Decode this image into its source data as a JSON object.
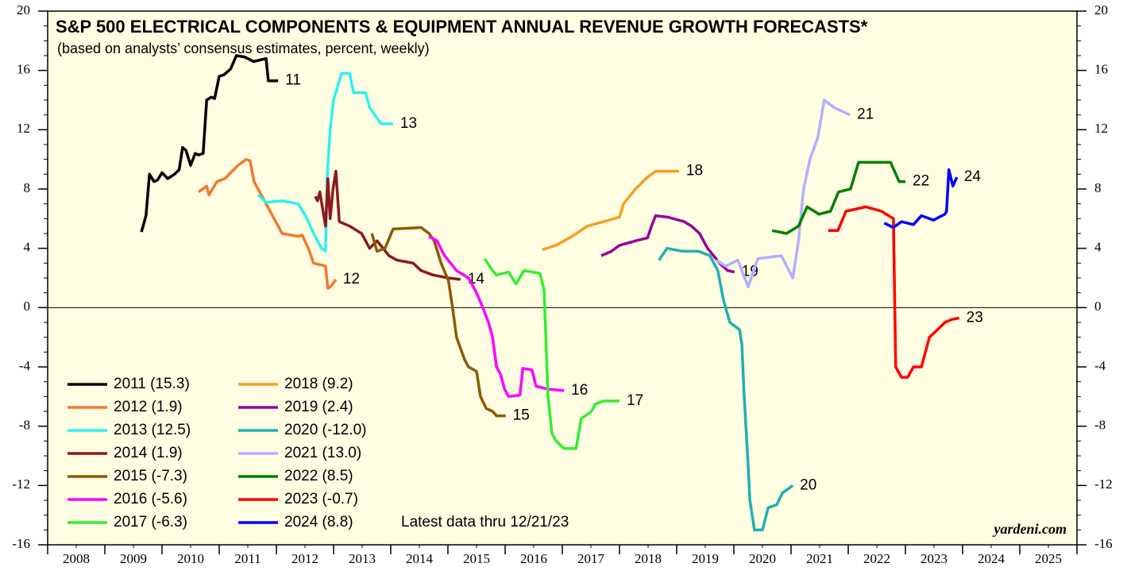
{
  "chart_data": {
    "type": "line",
    "title": "S&P 500 ELECTRICAL COMPONENTS & EQUIPMENT ANNUAL REVENUE GROWTH FORECASTS*",
    "subtitle": "(based on analysts’ consensus estimates, percent, weekly)",
    "annotation": "Latest data thru 12/21/23",
    "source": "yardeni.com",
    "xlim": [
      2008,
      2026
    ],
    "xticks": [
      {
        "value": 2008.5,
        "label": "2008"
      },
      {
        "value": 2009.5,
        "label": "2009"
      },
      {
        "value": 2010.5,
        "label": "2010"
      },
      {
        "value": 2011.5,
        "label": "2011"
      },
      {
        "value": 2012.5,
        "label": "2012"
      },
      {
        "value": 2013.5,
        "label": "2013"
      },
      {
        "value": 2014.5,
        "label": "2014"
      },
      {
        "value": 2015.5,
        "label": "2015"
      },
      {
        "value": 2016.5,
        "label": "2016"
      },
      {
        "value": 2017.5,
        "label": "2017"
      },
      {
        "value": 2018.5,
        "label": "2018"
      },
      {
        "value": 2019.5,
        "label": "2019"
      },
      {
        "value": 2020.5,
        "label": "2020"
      },
      {
        "value": 2021.5,
        "label": "2021"
      },
      {
        "value": 2022.5,
        "label": "2022"
      },
      {
        "value": 2023.5,
        "label": "2023"
      },
      {
        "value": 2024.5,
        "label": "2024"
      },
      {
        "value": 2025.5,
        "label": "2025"
      }
    ],
    "ylim": [
      -16,
      20
    ],
    "yticks": [
      -16,
      -12,
      -8,
      -4,
      0,
      4,
      8,
      12,
      16,
      20
    ],
    "series": [
      {
        "name": "2011 (15.3)",
        "label": "11",
        "color": "#000000",
        "x": [
          2009.64,
          2009.72,
          2009.78,
          2009.86,
          2009.92,
          2010.0,
          2010.1,
          2010.22,
          2010.3,
          2010.36,
          2010.42,
          2010.5,
          2010.58,
          2010.64,
          2010.72,
          2010.78,
          2010.86,
          2010.92,
          2011.0,
          2011.08,
          2011.2,
          2011.3,
          2011.45,
          2011.6,
          2011.82,
          2011.86,
          2011.9,
          2012.03
        ],
        "values": [
          5.1,
          6.2,
          9.0,
          8.5,
          8.6,
          9.1,
          8.7,
          9.0,
          9.3,
          10.8,
          10.6,
          9.6,
          10.4,
          10.3,
          10.4,
          14.0,
          14.2,
          14.1,
          15.6,
          15.7,
          16.1,
          17.0,
          16.9,
          16.6,
          16.8,
          15.3,
          15.3,
          15.3
        ]
      },
      {
        "name": "2012 (1.9)",
        "label": "12",
        "color": "#f07a30",
        "x": [
          2010.64,
          2010.78,
          2010.82,
          2010.96,
          2011.1,
          2011.33,
          2011.47,
          2011.54,
          2011.61,
          2011.75,
          2011.96,
          2012.1,
          2012.38,
          2012.45,
          2012.56,
          2012.65,
          2012.86,
          2012.9,
          2012.97,
          2013.04
        ],
        "values": [
          7.8,
          8.2,
          7.6,
          8.5,
          8.7,
          9.6,
          10.0,
          9.9,
          8.5,
          7.5,
          6.0,
          5.0,
          4.8,
          4.9,
          4.0,
          3.0,
          2.8,
          1.3,
          1.5,
          1.9
        ]
      },
      {
        "name": "2013 (12.5)",
        "label": "13",
        "color": "#30f0f0",
        "x": [
          2011.68,
          2011.82,
          2012.1,
          2012.38,
          2012.51,
          2012.65,
          2012.79,
          2012.86,
          2012.89,
          2012.94,
          2013.0,
          2013.14,
          2013.28,
          2013.35,
          2013.56,
          2013.63,
          2013.83,
          2014.04
        ],
        "values": [
          7.6,
          7.1,
          7.2,
          7.0,
          6.2,
          5.0,
          4.0,
          3.8,
          9.0,
          12.0,
          14.0,
          15.8,
          15.8,
          14.5,
          14.5,
          13.5,
          12.4,
          12.4
        ]
      },
      {
        "name": "2014 (1.9)",
        "label": "14",
        "color": "#8b1a1a",
        "x": [
          2012.68,
          2012.72,
          2012.76,
          2012.86,
          2012.9,
          2012.94,
          2012.99,
          2013.04,
          2013.1,
          2013.28,
          2013.49,
          2013.63,
          2013.76,
          2013.97,
          2014.11,
          2014.39,
          2014.53,
          2014.74,
          2015.01,
          2015.22
        ],
        "values": [
          7.5,
          7.2,
          7.8,
          5.5,
          8.7,
          6.0,
          8.0,
          9.2,
          5.8,
          5.5,
          5.0,
          4.0,
          4.5,
          3.5,
          3.2,
          3.0,
          2.5,
          2.2,
          2.0,
          1.9
        ]
      },
      {
        "name": "2015 (-7.3)",
        "label": "15",
        "color": "#8b5a00",
        "x": [
          2013.67,
          2013.76,
          2013.9,
          2014.04,
          2014.53,
          2014.67,
          2014.76,
          2014.88,
          2015.01,
          2015.08,
          2015.15,
          2015.29,
          2015.36,
          2015.5,
          2015.57,
          2015.67,
          2015.78,
          2015.85,
          2016.01
        ],
        "values": [
          5.0,
          3.8,
          4.0,
          5.3,
          5.4,
          5.0,
          4.5,
          3.0,
          1.8,
          0.0,
          -2.0,
          -3.5,
          -4.0,
          -4.3,
          -6.0,
          -6.8,
          -7.0,
          -7.3,
          -7.3
        ]
      },
      {
        "name": "2016 (-5.6)",
        "label": "16",
        "color": "#ff00ff",
        "x": [
          2014.67,
          2014.81,
          2014.94,
          2015.15,
          2015.36,
          2015.5,
          2015.61,
          2015.71,
          2015.78,
          2015.85,
          2015.92,
          2015.99,
          2016.06,
          2016.26,
          2016.31,
          2016.47,
          2016.54,
          2016.75,
          2017.03
        ],
        "values": [
          4.8,
          4.5,
          3.5,
          2.5,
          2.0,
          1.0,
          0.0,
          -1.0,
          -2.0,
          -4.0,
          -4.5,
          -5.5,
          -6.0,
          -5.9,
          -4.1,
          -4.2,
          -5.3,
          -5.5,
          -5.6
        ]
      },
      {
        "name": "2017 (-6.3)",
        "label": "17",
        "color": "#33ee33",
        "x": [
          2015.64,
          2015.78,
          2015.85,
          2016.06,
          2016.19,
          2016.33,
          2016.61,
          2016.68,
          2016.75,
          2016.82,
          2016.89,
          2017.03,
          2017.24,
          2017.33,
          2017.51,
          2017.58,
          2017.72,
          2018.0
        ],
        "values": [
          3.3,
          2.5,
          2.2,
          2.4,
          1.6,
          2.5,
          2.3,
          1.2,
          -6.0,
          -8.5,
          -9.0,
          -9.5,
          -9.5,
          -7.5,
          -7.0,
          -6.5,
          -6.3,
          -6.3
        ]
      },
      {
        "name": "2018 (9.2)",
        "label": "18",
        "color": "#f5a020",
        "x": [
          2016.65,
          2016.89,
          2017.17,
          2017.44,
          2017.72,
          2018.0,
          2018.07,
          2018.28,
          2018.49,
          2018.63,
          2019.04
        ],
        "values": [
          3.9,
          4.2,
          4.8,
          5.5,
          5.8,
          6.1,
          7.0,
          8.0,
          8.8,
          9.2,
          9.2
        ]
      },
      {
        "name": "2019 (2.4)",
        "label": "19",
        "color": "#990099",
        "x": [
          2017.68,
          2017.86,
          2018.0,
          2018.28,
          2018.49,
          2018.56,
          2018.63,
          2018.85,
          2019.13,
          2019.26,
          2019.4,
          2019.54,
          2019.75,
          2019.89,
          2020.01
        ],
        "values": [
          3.5,
          3.8,
          4.2,
          4.5,
          4.7,
          5.5,
          6.2,
          6.1,
          5.8,
          5.5,
          5.0,
          4.0,
          3.0,
          2.5,
          2.4
        ]
      },
      {
        "name": "2020 (-12.0)",
        "label": "20",
        "color": "#20b0b0",
        "x": [
          2018.69,
          2018.83,
          2019.1,
          2019.38,
          2019.58,
          2019.72,
          2019.82,
          2019.93,
          2020.1,
          2020.14,
          2020.18,
          2020.24,
          2020.28,
          2020.36,
          2020.5,
          2020.6,
          2020.75,
          2020.85,
          2021.03
        ],
        "values": [
          3.2,
          4.0,
          3.8,
          3.8,
          3.5,
          2.5,
          0.5,
          -1.0,
          -1.5,
          -2.5,
          -6.0,
          -10.0,
          -13.0,
          -15.0,
          -15.0,
          -13.5,
          -13.3,
          -12.5,
          -12.0
        ]
      },
      {
        "name": "2021 (13.0)",
        "label": "21",
        "color": "#b0b0ff",
        "x": [
          2019.69,
          2019.86,
          2020.07,
          2020.25,
          2020.42,
          2020.83,
          2021.03,
          2021.13,
          2021.22,
          2021.33,
          2021.47,
          2021.58,
          2021.75,
          2022.03
        ],
        "values": [
          3.2,
          2.8,
          3.2,
          1.4,
          3.3,
          3.5,
          2.0,
          4.5,
          8.0,
          10.0,
          11.5,
          14.0,
          13.5,
          13.0
        ]
      },
      {
        "name": "2022 (8.5)",
        "label": "22",
        "color": "#008000",
        "x": [
          2020.67,
          2020.92,
          2021.13,
          2021.28,
          2021.49,
          2021.69,
          2021.83,
          2022.04,
          2022.18,
          2022.74,
          2022.89,
          2023.0
        ],
        "values": [
          5.2,
          5.0,
          5.5,
          6.8,
          6.3,
          6.5,
          7.8,
          8.0,
          9.8,
          9.8,
          8.5,
          8.5
        ]
      },
      {
        "name": "2023 (-0.7)",
        "label": "23",
        "color": "#ff0000",
        "x": [
          2021.65,
          2021.82,
          2021.96,
          2022.31,
          2022.58,
          2022.79,
          2022.83,
          2022.93,
          2023.04,
          2023.14,
          2023.28,
          2023.42,
          2023.56,
          2023.69,
          2023.81,
          2023.94
        ],
        "values": [
          5.2,
          5.2,
          6.5,
          6.8,
          6.5,
          6.0,
          -4.0,
          -4.7,
          -4.7,
          -4.0,
          -4.0,
          -2.0,
          -1.5,
          -1.0,
          -0.8,
          -0.7
        ]
      },
      {
        "name": "2024 (8.8)",
        "label": "24",
        "color": "#0000ff",
        "x": [
          2022.63,
          2022.79,
          2022.93,
          2023.14,
          2023.28,
          2023.49,
          2023.69,
          2023.72,
          2023.76,
          2023.83,
          2023.9
        ],
        "values": [
          5.7,
          5.4,
          5.8,
          5.6,
          6.2,
          5.9,
          6.3,
          6.5,
          9.3,
          8.2,
          8.8
        ]
      }
    ]
  }
}
